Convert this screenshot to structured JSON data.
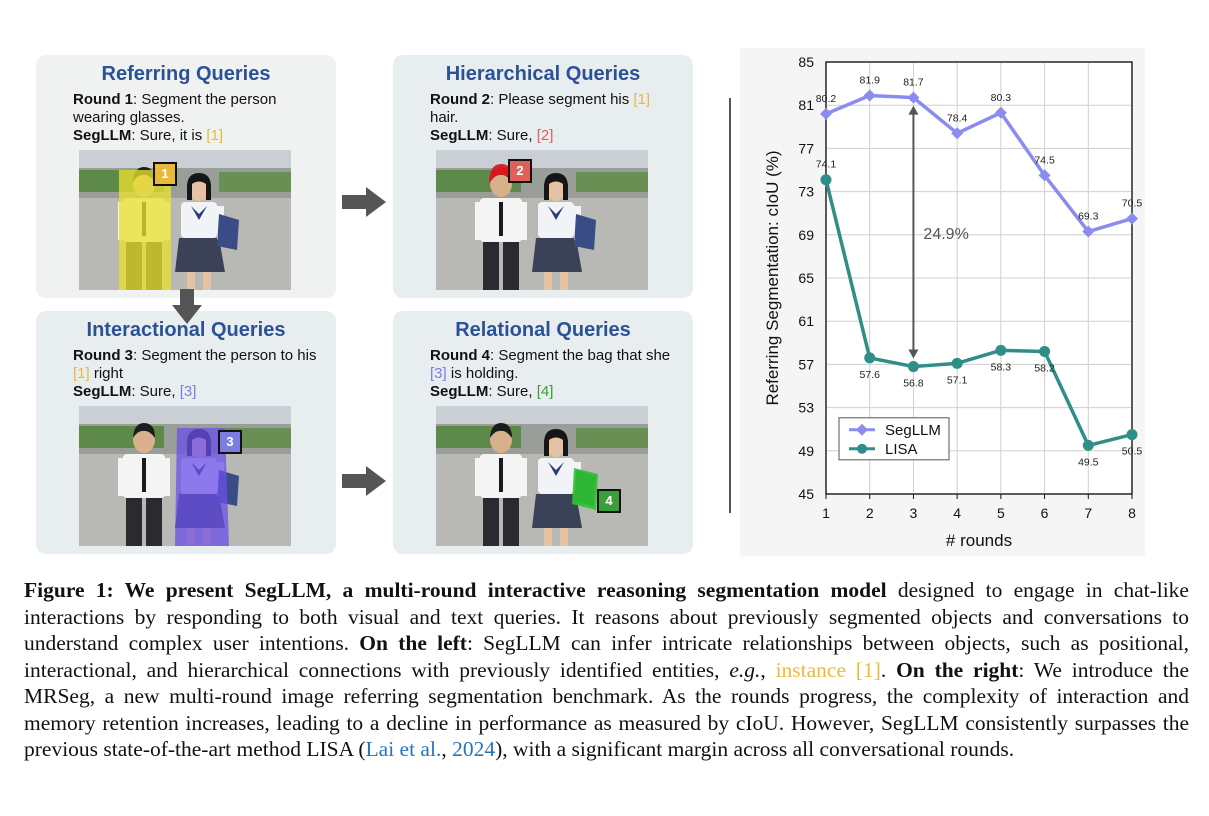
{
  "panels": [
    {
      "title": "Referring Queries",
      "round_label": "Round 1",
      "query": ": Segment the person wearing glasses.",
      "answer_label": "SegLLM",
      "answer_text": ": Sure, it is ",
      "ref": "[1]",
      "tag": "1",
      "tag_color": "#e9b93a",
      "mask_color": "#e8e030"
    },
    {
      "title": "Hierarchical Queries",
      "round_label": "Round 2",
      "query_pre": ": Please segment his ",
      "query_ref": "[1]",
      "query_post": " hair.",
      "answer_label": "SegLLM",
      "answer_text": ": Sure, ",
      "ref": "[2]",
      "tag": "2",
      "tag_color": "#e0605a",
      "mask_color": "#e01820"
    },
    {
      "title": "Interactional Queries",
      "round_label": "Round 3",
      "query_pre": ": Segment the person to his ",
      "query_ref": "[1]",
      "query_post": " right",
      "answer_label": "SegLLM",
      "answer_text": ": Sure, ",
      "ref": "[3]",
      "tag": "3",
      "tag_color": "#7b7ee0",
      "mask_color": "#6b50e8"
    },
    {
      "title": "Relational Queries",
      "round_label": "Round 4",
      "query_pre": ": Segment the bag that she ",
      "query_ref": "[3]",
      "query_post": " is holding.",
      "answer_label": "SegLLM",
      "answer_text": ": Sure, ",
      "ref": "[4]",
      "tag": "4",
      "tag_color": "#3a9e3a",
      "mask_color": "#2ec22e"
    }
  ],
  "chart_data": {
    "type": "line",
    "xlabel": "# rounds",
    "ylabel": "Referring Segmentation: cIoU (%)",
    "x": [
      1,
      2,
      3,
      4,
      5,
      6,
      7,
      8
    ],
    "ylim": [
      45,
      85
    ],
    "yticks": [
      45,
      49,
      53,
      57,
      61,
      65,
      69,
      73,
      77,
      81,
      85
    ],
    "grid": true,
    "legend_position": "bottom-left",
    "series": [
      {
        "name": "SegLLM",
        "color": "#8b8cf0",
        "marker": "diamond",
        "values": [
          80.2,
          81.9,
          81.7,
          78.4,
          80.3,
          74.5,
          69.3,
          70.5
        ]
      },
      {
        "name": "LISA",
        "color": "#2f8f88",
        "marker": "circle",
        "values": [
          74.1,
          57.6,
          56.8,
          57.1,
          58.3,
          58.2,
          49.5,
          50.5
        ]
      }
    ],
    "annotation": {
      "text": "24.9%",
      "x": 3
    }
  },
  "caption": {
    "label": "Figure 1: We present SegLLM, a multi-round interactive reasoning segmentation model",
    "t1": " designed to engage in chat-like interactions by responding to both visual and text queries. It reasons about previously segmented objects and conversations to understand complex user intentions. ",
    "left_label": "On the left",
    "t2": ": SegLLM can infer intricate relationships between objects, such as positional, interactional, and hierarchical connections with previously identified entities, ",
    "eg": "e.g.",
    "t3": ", ",
    "instance": "instance [1]",
    "t4": ". ",
    "right_label": "On the right",
    "t5": ": We introduce the MRSeg, a new multi-round image referring segmentation benchmark. As the rounds progress, the complexity of interaction and memory retention increases, leading to a decline in performance as measured by cIoU. However, SegLLM consistently surpasses the previous state-of-the-art method LISA (",
    "cite_a": "Lai et al.",
    "t6": ", ",
    "cite_b": "2024",
    "t7": "), with a significant margin across all conversational rounds."
  },
  "colors": {
    "panel_title": "#2a5294",
    "arrow": "#555555",
    "citation": "#2b73b9"
  }
}
